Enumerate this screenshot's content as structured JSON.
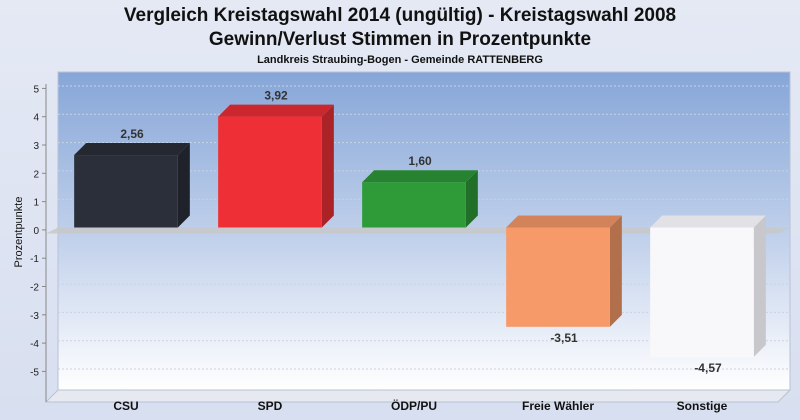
{
  "chart_data": {
    "type": "bar",
    "title_line1": "Vergleich Kreistagswahl 2014 (ungültig) - Kreistagswahl 2008",
    "title_line2": "Gewinn/Verlust Stimmen in Prozentpunkte",
    "subtitle": "Landkreis Straubing-Bogen - Gemeinde RATTENBERG",
    "ylabel": "Prozentpunkte",
    "ylim": [
      -5,
      5
    ],
    "yticks": [
      5,
      4,
      3,
      2,
      1,
      0,
      -1,
      -2,
      -3,
      -4,
      -5
    ],
    "ytick_labels": [
      "5",
      "4",
      "3",
      "2",
      "1",
      "0",
      "-1",
      "-2",
      "-3",
      "-4",
      "-5"
    ],
    "categories": [
      "CSU",
      "SPD",
      "ÖDP/PU",
      "Freie Wähler",
      "Sonstige"
    ],
    "values": [
      2.56,
      3.92,
      1.6,
      -3.51,
      -4.57
    ],
    "value_labels": [
      "2,56",
      "3,92",
      "1,60",
      "-3,51",
      "-4,57"
    ],
    "colors": [
      "#2b2f3a",
      "#ee2f36",
      "#2e9a38",
      "#f79a6a",
      "#f8f8fb"
    ],
    "grid": true,
    "legend": "none"
  }
}
